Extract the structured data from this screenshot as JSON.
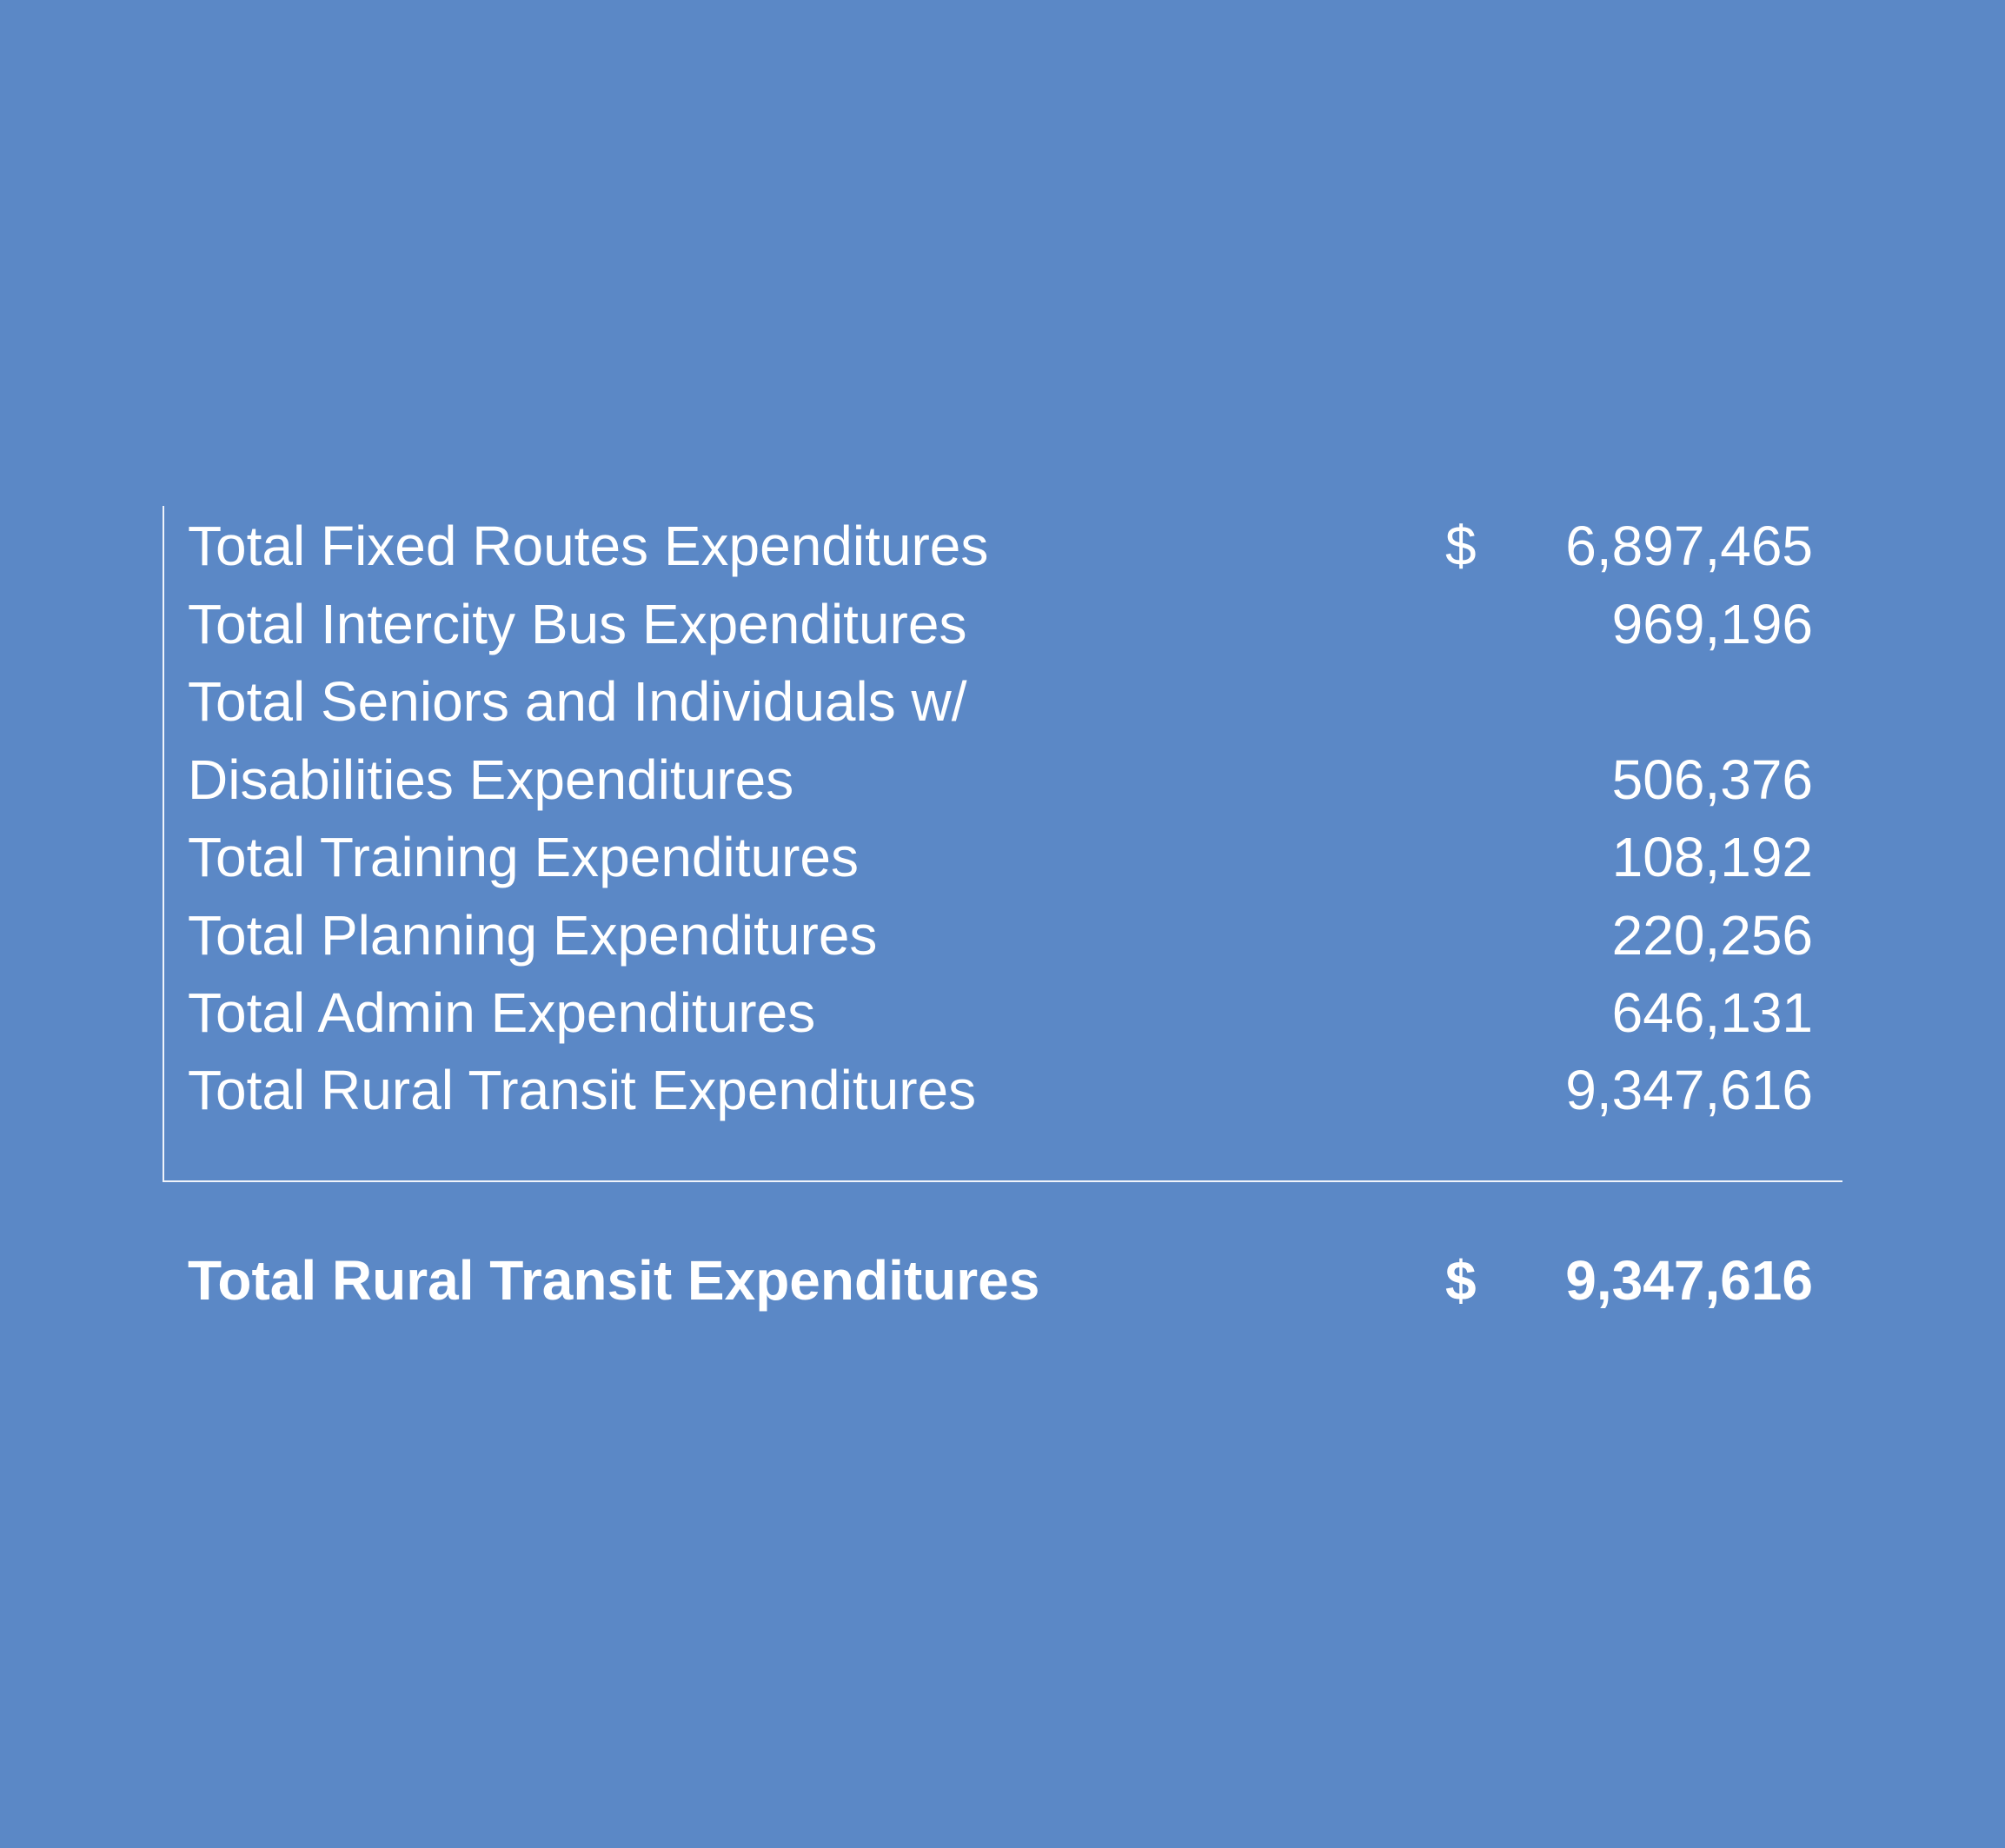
{
  "expenditures": {
    "rows": [
      {
        "label": "Total Fixed Routes Expenditures",
        "currency": "$",
        "value": "6,897,465"
      },
      {
        "label": "Total Intercity Bus Expenditures",
        "currency": "",
        "value": "969,196"
      },
      {
        "label": "Total Seniors and Individuals w/",
        "currency": "",
        "value": ""
      },
      {
        "label": "Disabilities Expenditures",
        "currency": "",
        "value": "506,376"
      },
      {
        "label": "Total Training Expenditures",
        "currency": "",
        "value": "108,192"
      },
      {
        "label": "Total Planning Expenditures",
        "currency": "",
        "value": "220,256"
      },
      {
        "label": "Total Admin Expenditures",
        "currency": "",
        "value": "646,131"
      },
      {
        "label": "Total Rural Transit Expenditures",
        "currency": "",
        "value": "9,347,616"
      }
    ],
    "total": {
      "label": "Total Rural Transit Expenditures",
      "currency": "$",
      "value": "9,347,616"
    }
  },
  "colors": {
    "background": "#5b88c6",
    "text": "#ffffff"
  }
}
